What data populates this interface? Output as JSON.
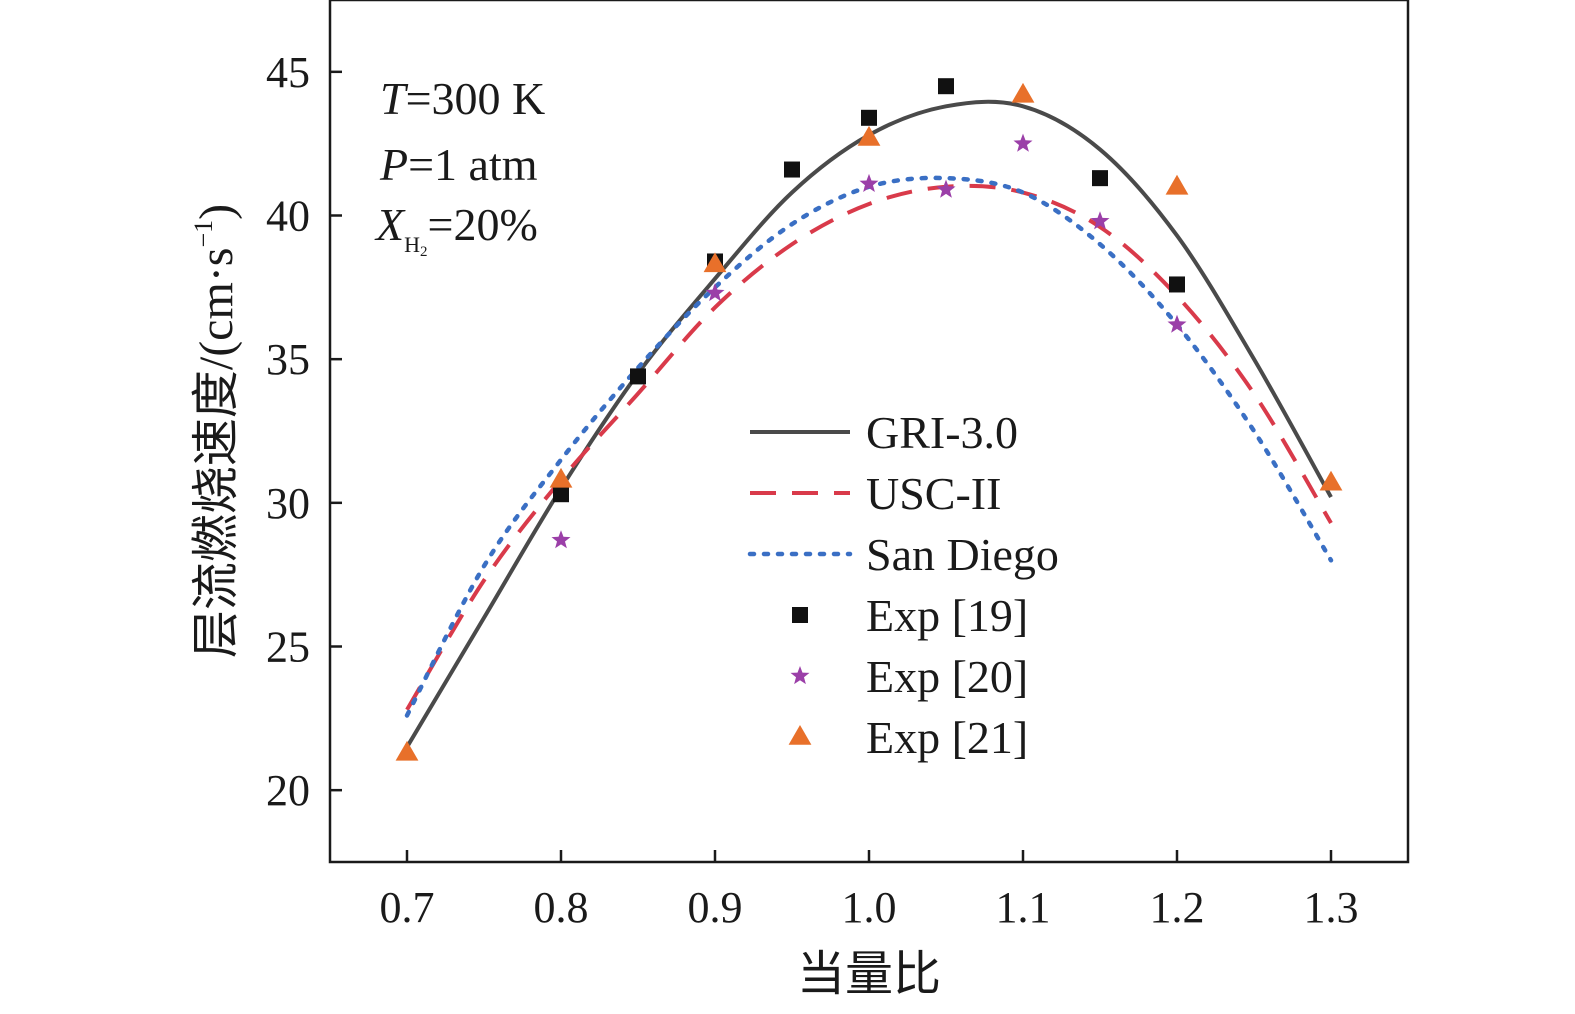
{
  "chart_data": {
    "type": "line",
    "xlabel": "当量比",
    "ylabel": "层流燃烧速度/(cm·s",
    "ylabel_sup": "−1",
    "ylabel_close": ")",
    "xlim": [
      0.65,
      1.35
    ],
    "ylim": [
      17.5,
      47.5
    ],
    "xticks": [
      0.7,
      0.8,
      0.9,
      1.0,
      1.1,
      1.2,
      1.3
    ],
    "xtick_labels": [
      "0.7",
      "0.8",
      "0.9",
      "1.0",
      "1.1",
      "1.2",
      "1.3"
    ],
    "yticks": [
      20,
      25,
      30,
      35,
      40,
      45
    ],
    "ytick_labels": [
      "20",
      "25",
      "30",
      "35",
      "40",
      "45"
    ],
    "grid": false,
    "legend_position": "center-right",
    "annotations": {
      "line1_var": "T",
      "line1_rest": "=300 K",
      "line2_var": "P",
      "line2_rest": "=1 atm",
      "line3_var": "X",
      "line3_sub": "H",
      "line3_subsub": "2",
      "line3_rest": "=20%"
    },
    "series": [
      {
        "name": "GRI-3.0",
        "kind": "line",
        "style": "solid",
        "color": "#4a4a4a",
        "x": [
          0.7,
          0.75,
          0.8,
          0.85,
          0.9,
          0.95,
          1.0,
          1.05,
          1.1,
          1.15,
          1.2,
          1.25,
          1.3
        ],
        "y": [
          21.5,
          26.0,
          30.5,
          34.5,
          37.8,
          40.8,
          42.8,
          43.8,
          43.8,
          42.3,
          39.3,
          35.0,
          30.2
        ]
      },
      {
        "name": "USC-II",
        "kind": "line",
        "style": "dashed",
        "color": "#d93a4a",
        "x": [
          0.7,
          0.75,
          0.8,
          0.85,
          0.9,
          0.95,
          1.0,
          1.05,
          1.1,
          1.15,
          1.2,
          1.25,
          1.3
        ],
        "y": [
          22.8,
          27.3,
          30.8,
          33.8,
          36.8,
          39.0,
          40.4,
          41.0,
          40.8,
          39.6,
          37.2,
          33.8,
          29.3
        ]
      },
      {
        "name": "San Diego",
        "kind": "line",
        "style": "dotted",
        "color": "#3a6fc4",
        "x": [
          0.7,
          0.75,
          0.8,
          0.85,
          0.9,
          0.95,
          1.0,
          1.05,
          1.1,
          1.15,
          1.2,
          1.25,
          1.3
        ],
        "y": [
          22.6,
          27.8,
          31.5,
          34.7,
          37.5,
          39.7,
          41.0,
          41.3,
          40.8,
          39.0,
          36.2,
          32.5,
          28.0
        ]
      },
      {
        "name": "Exp [19]",
        "kind": "scatter",
        "marker": "square",
        "color": "#111111",
        "x": [
          0.8,
          0.85,
          0.9,
          0.95,
          1.0,
          1.05,
          1.15,
          1.2
        ],
        "y": [
          30.3,
          34.4,
          38.4,
          41.6,
          43.4,
          44.5,
          41.3,
          37.6
        ]
      },
      {
        "name": "Exp [20]",
        "kind": "scatter",
        "marker": "star",
        "color": "#9b3fa8",
        "x": [
          0.8,
          0.9,
          1.0,
          1.05,
          1.1,
          1.15,
          1.2
        ],
        "y": [
          28.7,
          37.3,
          41.1,
          40.9,
          42.5,
          39.8,
          36.2
        ]
      },
      {
        "name": "Exp [21]",
        "kind": "scatter",
        "marker": "triangle",
        "color": "#e8702a",
        "x": [
          0.7,
          0.8,
          0.9,
          1.0,
          1.1,
          1.2,
          1.3
        ],
        "y": [
          21.3,
          30.8,
          38.3,
          42.7,
          44.2,
          41.0,
          30.7
        ]
      }
    ]
  }
}
